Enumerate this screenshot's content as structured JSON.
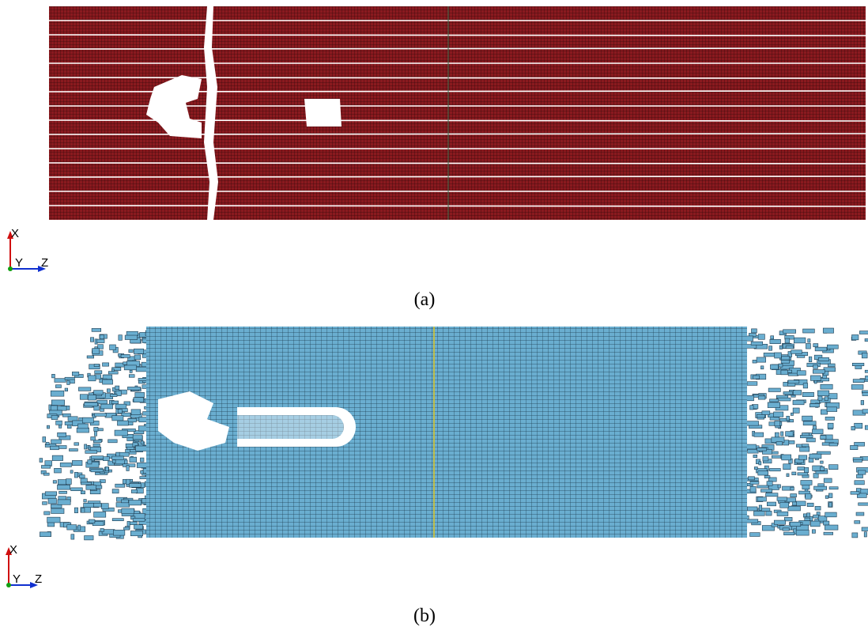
{
  "panels": [
    {
      "caption": "(a)",
      "triad": {
        "x": "X",
        "y": "Y",
        "z": "Z"
      }
    },
    {
      "caption": "(b)",
      "triad": {
        "x": "X",
        "y": "Y",
        "z": "Z"
      }
    }
  ]
}
